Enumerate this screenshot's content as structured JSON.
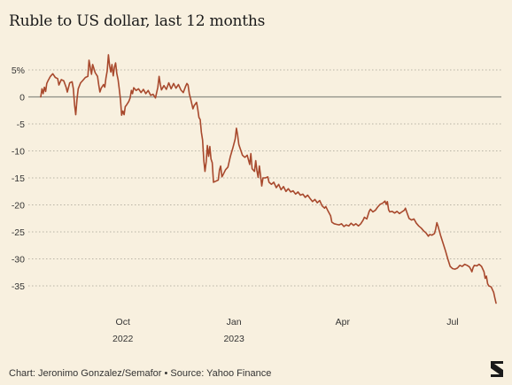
{
  "chart_data": {
    "type": "line",
    "title": "Ruble to US dollar, last 12 months",
    "xlabel": "",
    "ylabel": "",
    "ylim": [
      -38.5,
      7
    ],
    "yticks": [
      {
        "value": 5,
        "label": "5%"
      },
      {
        "value": 0,
        "label": "0"
      },
      {
        "value": -5,
        "label": "-5"
      },
      {
        "value": -10,
        "label": "-10"
      },
      {
        "value": -15,
        "label": "-15"
      },
      {
        "value": -20,
        "label": "-20"
      },
      {
        "value": -25,
        "label": "-25"
      },
      {
        "value": -30,
        "label": "-30"
      },
      {
        "value": -35,
        "label": "-35"
      }
    ],
    "xticks": [
      {
        "day": 68,
        "label": "Oct",
        "sublabel": "2022"
      },
      {
        "day": 160,
        "label": "Jan",
        "sublabel": "2023"
      },
      {
        "day": 250,
        "label": "Apr",
        "sublabel": ""
      },
      {
        "day": 341,
        "label": "Jul",
        "sublabel": ""
      }
    ],
    "xlim": [
      0,
      377
    ],
    "grid": "horizontal dotted",
    "zero_line": true,
    "series": [
      {
        "color": "#a8492d",
        "points": [
          [
            0,
            0
          ],
          [
            1,
            1.5
          ],
          [
            2,
            0.6
          ],
          [
            3,
            1.8
          ],
          [
            4,
            1.0
          ],
          [
            5,
            2.5
          ],
          [
            6,
            3.0
          ],
          [
            8,
            3.8
          ],
          [
            10,
            4.3
          ],
          [
            12,
            3.6
          ],
          [
            14,
            3.4
          ],
          [
            15,
            2.2
          ],
          [
            17,
            3.2
          ],
          [
            19,
            3.0
          ],
          [
            21,
            1.8
          ],
          [
            22,
            0.9
          ],
          [
            24,
            2.6
          ],
          [
            26,
            2.8
          ],
          [
            27,
            1.5
          ],
          [
            28,
            -1.5
          ],
          [
            29,
            -3.3
          ],
          [
            30,
            -0.5
          ],
          [
            31,
            1.5
          ],
          [
            33,
            2.6
          ],
          [
            35,
            3.1
          ],
          [
            37,
            3.6
          ],
          [
            39,
            3.8
          ],
          [
            40,
            6.8
          ],
          [
            41,
            5.5
          ],
          [
            42,
            4.2
          ],
          [
            43,
            6.0
          ],
          [
            45,
            4.5
          ],
          [
            47,
            3.8
          ],
          [
            48,
            2.3
          ],
          [
            49,
            0.9
          ],
          [
            50,
            1.6
          ],
          [
            52,
            2.3
          ],
          [
            53,
            1.8
          ],
          [
            54,
            3.5
          ],
          [
            55,
            4.8
          ],
          [
            56,
            7.8
          ],
          [
            57,
            5.8
          ],
          [
            58,
            4.6
          ],
          [
            59,
            6.0
          ],
          [
            60,
            3.9
          ],
          [
            61,
            5.5
          ],
          [
            62,
            6.3
          ],
          [
            63,
            4.3
          ],
          [
            64,
            3.2
          ],
          [
            65,
            1.5
          ],
          [
            66,
            -0.5
          ],
          [
            67,
            -3.4
          ],
          [
            68,
            -2.6
          ],
          [
            69,
            -3.3
          ],
          [
            70,
            -1.8
          ],
          [
            71,
            -1.5
          ],
          [
            73,
            -0.8
          ],
          [
            74,
            -0.2
          ],
          [
            75,
            1.2
          ],
          [
            76,
            0.6
          ],
          [
            77,
            1.7
          ],
          [
            79,
            1.2
          ],
          [
            81,
            1.5
          ],
          [
            83,
            0.8
          ],
          [
            85,
            1.4
          ],
          [
            87,
            0.6
          ],
          [
            89,
            1.2
          ],
          [
            91,
            0.3
          ],
          [
            93,
            0.5
          ],
          [
            95,
            -0.2
          ],
          [
            97,
            1.8
          ],
          [
            98,
            3.8
          ],
          [
            99,
            2.3
          ],
          [
            100,
            1.3
          ],
          [
            102,
            2.1
          ],
          [
            104,
            1.4
          ],
          [
            106,
            2.6
          ],
          [
            108,
            1.5
          ],
          [
            110,
            2.5
          ],
          [
            112,
            1.6
          ],
          [
            114,
            2.3
          ],
          [
            116,
            1.3
          ],
          [
            118,
            0.8
          ],
          [
            120,
            2.0
          ],
          [
            121,
            2.5
          ],
          [
            122,
            2.2
          ],
          [
            123,
            0.6
          ],
          [
            124,
            -0.3
          ],
          [
            125,
            -1.2
          ],
          [
            126,
            -2.2
          ],
          [
            127,
            -1.6
          ],
          [
            129,
            -1.0
          ],
          [
            130,
            -2.2
          ],
          [
            131,
            -3.8
          ],
          [
            132,
            -4.2
          ],
          [
            133,
            -6.5
          ],
          [
            134,
            -8.0
          ],
          [
            135,
            -11.8
          ],
          [
            136,
            -13.8
          ],
          [
            137,
            -12.0
          ],
          [
            138,
            -9.0
          ],
          [
            139,
            -11.0
          ],
          [
            140,
            -9.2
          ],
          [
            141,
            -11.5
          ],
          [
            142,
            -12.2
          ],
          [
            143,
            -15.8
          ],
          [
            145,
            -15.6
          ],
          [
            147,
            -15.4
          ],
          [
            148,
            -13.5
          ],
          [
            149,
            -12.8
          ],
          [
            150,
            -14.8
          ],
          [
            151,
            -14.4
          ],
          [
            153,
            -13.5
          ],
          [
            155,
            -13.0
          ],
          [
            157,
            -11.0
          ],
          [
            159,
            -9.5
          ],
          [
            161,
            -7.8
          ],
          [
            162,
            -5.8
          ],
          [
            163,
            -7.0
          ],
          [
            164,
            -8.8
          ],
          [
            165,
            -9.5
          ],
          [
            167,
            -10.8
          ],
          [
            169,
            -11.2
          ],
          [
            171,
            -10.8
          ],
          [
            173,
            -12.5
          ],
          [
            174,
            -10.5
          ],
          [
            175,
            -13.3
          ],
          [
            177,
            -13.8
          ],
          [
            178,
            -11.8
          ],
          [
            179,
            -13.6
          ],
          [
            180,
            -14.9
          ],
          [
            181,
            -12.8
          ],
          [
            182,
            -14.5
          ],
          [
            183,
            -16.5
          ],
          [
            184,
            -15.0
          ],
          [
            186,
            -15.0
          ],
          [
            188,
            -14.8
          ],
          [
            189,
            -15.8
          ],
          [
            191,
            -16.2
          ],
          [
            193,
            -15.8
          ],
          [
            195,
            -16.8
          ],
          [
            197,
            -16.2
          ],
          [
            199,
            -17.2
          ],
          [
            201,
            -16.6
          ],
          [
            203,
            -17.5
          ],
          [
            205,
            -17.0
          ],
          [
            207,
            -17.6
          ],
          [
            209,
            -17.4
          ],
          [
            211,
            -18.0
          ],
          [
            213,
            -17.6
          ],
          [
            215,
            -18.2
          ],
          [
            217,
            -18.0
          ],
          [
            219,
            -18.6
          ],
          [
            221,
            -18.2
          ],
          [
            223,
            -18.8
          ],
          [
            225,
            -19.4
          ],
          [
            227,
            -19.0
          ],
          [
            229,
            -19.6
          ],
          [
            231,
            -19.2
          ],
          [
            233,
            -20.2
          ],
          [
            235,
            -20.6
          ],
          [
            236,
            -20.3
          ],
          [
            238,
            -21.2
          ],
          [
            240,
            -22.0
          ],
          [
            241,
            -23.2
          ],
          [
            243,
            -23.5
          ],
          [
            245,
            -23.6
          ],
          [
            247,
            -23.7
          ],
          [
            249,
            -23.5
          ],
          [
            251,
            -24.0
          ],
          [
            253,
            -23.7
          ],
          [
            255,
            -23.9
          ],
          [
            257,
            -23.4
          ],
          [
            259,
            -23.8
          ],
          [
            261,
            -23.5
          ],
          [
            263,
            -23.9
          ],
          [
            265,
            -23.5
          ],
          [
            267,
            -22.8
          ],
          [
            268,
            -22.3
          ],
          [
            270,
            -22.6
          ],
          [
            272,
            -21.2
          ],
          [
            273,
            -20.8
          ],
          [
            275,
            -21.3
          ],
          [
            277,
            -21.0
          ],
          [
            279,
            -20.4
          ],
          [
            281,
            -19.9
          ],
          [
            283,
            -19.7
          ],
          [
            285,
            -19.3
          ],
          [
            286,
            -19.9
          ],
          [
            287,
            -19.4
          ],
          [
            288,
            -20.9
          ],
          [
            289,
            -21.3
          ],
          [
            291,
            -21.2
          ],
          [
            293,
            -21.5
          ],
          [
            295,
            -21.2
          ],
          [
            297,
            -21.6
          ],
          [
            299,
            -21.3
          ],
          [
            301,
            -21.0
          ],
          [
            302,
            -20.6
          ],
          [
            303,
            -21.3
          ],
          [
            305,
            -22.5
          ],
          [
            307,
            -22.8
          ],
          [
            309,
            -22.6
          ],
          [
            311,
            -23.4
          ],
          [
            313,
            -23.9
          ],
          [
            315,
            -24.3
          ],
          [
            317,
            -24.8
          ],
          [
            319,
            -25.2
          ],
          [
            321,
            -25.8
          ],
          [
            322,
            -25.5
          ],
          [
            324,
            -25.6
          ],
          [
            326,
            -25.3
          ],
          [
            327,
            -24.5
          ],
          [
            328,
            -23.3
          ],
          [
            329,
            -24.0
          ],
          [
            331,
            -25.6
          ],
          [
            333,
            -27.0
          ],
          [
            335,
            -28.4
          ],
          [
            337,
            -30.0
          ],
          [
            339,
            -31.4
          ],
          [
            341,
            -31.8
          ],
          [
            343,
            -31.9
          ],
          [
            345,
            -31.7
          ],
          [
            347,
            -31.2
          ],
          [
            349,
            -31.4
          ],
          [
            351,
            -31.0
          ],
          [
            353,
            -31.2
          ],
          [
            355,
            -31.5
          ],
          [
            356,
            -31.9
          ],
          [
            357,
            -32.4
          ],
          [
            358,
            -31.6
          ],
          [
            359,
            -31.2
          ],
          [
            361,
            -31.3
          ],
          [
            363,
            -31.0
          ],
          [
            365,
            -31.4
          ],
          [
            367,
            -32.4
          ],
          [
            368,
            -33.6
          ],
          [
            369,
            -33.2
          ],
          [
            370,
            -34.6
          ],
          [
            371,
            -35.0
          ],
          [
            373,
            -35.2
          ],
          [
            375,
            -36.2
          ],
          [
            376,
            -37.2
          ],
          [
            377,
            -38.2
          ]
        ]
      }
    ]
  },
  "footer": {
    "source": "Chart: Jeronimo Gonzalez/Semafor • Source: Yahoo Finance"
  },
  "logo": {
    "icon": "semafor-s-logo-icon",
    "color": "#1a1a1a"
  }
}
